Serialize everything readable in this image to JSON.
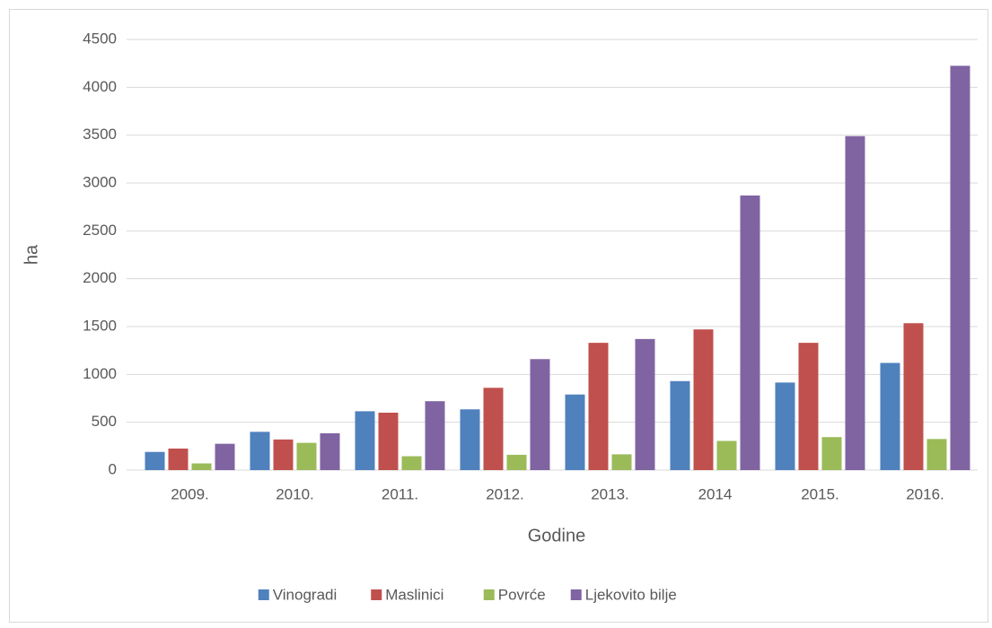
{
  "chart_data": {
    "type": "bar",
    "x_label": "Godine",
    "y_label": "ha",
    "categories": [
      "2009.",
      "2010.",
      "2011.",
      "2012.",
      "2013.",
      "2014",
      "2015.",
      "2016."
    ],
    "series": [
      {
        "name": "Vinogradi",
        "color": "#4f81bd",
        "values": [
          190,
          400,
          615,
          635,
          790,
          930,
          915,
          1120
        ]
      },
      {
        "name": "Maslinici",
        "color": "#c0504d",
        "values": [
          225,
          320,
          600,
          860,
          1330,
          1470,
          1330,
          1535
        ]
      },
      {
        "name": "Povrće",
        "color": "#9bbb59",
        "values": [
          70,
          285,
          145,
          160,
          165,
          305,
          345,
          325
        ]
      },
      {
        "name": "Ljekovito bilje",
        "color": "#8064a2",
        "values": [
          275,
          385,
          720,
          1160,
          1370,
          2870,
          3490,
          4225
        ]
      }
    ],
    "ylim": [
      0,
      4500
    ],
    "yticks": [
      0,
      500,
      1000,
      1500,
      2000,
      2500,
      3000,
      3500,
      4000,
      4500
    ],
    "grid": true,
    "legend": "bottom"
  }
}
